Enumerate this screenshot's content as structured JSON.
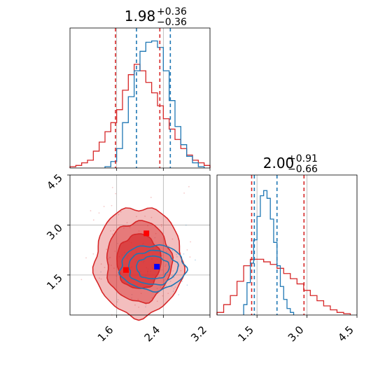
{
  "chart_data": [
    {
      "type": "histogram",
      "panel": "top-left (parameter 1 marginal)",
      "title": {
        "base": "1.98",
        "sup": "+0.36",
        "sub": "−0.36"
      },
      "xlim": [
        0.8,
        3.2
      ],
      "ylim": [
        0,
        1.08
      ],
      "series": [
        {
          "color": "#d62728",
          "bins": [
            0.8,
            0.9,
            1.0,
            1.1,
            1.2,
            1.3,
            1.4,
            1.5,
            1.6,
            1.7,
            1.8,
            1.9,
            2.0,
            2.1,
            2.2,
            2.3,
            2.4,
            2.5,
            2.6,
            2.7,
            2.8,
            2.9,
            3.0,
            3.1,
            3.2
          ],
          "values": [
            0.01,
            0.02,
            0.04,
            0.06,
            0.13,
            0.2,
            0.28,
            0.35,
            0.45,
            0.6,
            0.72,
            0.8,
            0.75,
            0.66,
            0.58,
            0.48,
            0.38,
            0.3,
            0.22,
            0.15,
            0.1,
            0.06,
            0.04,
            0.02
          ],
          "quantiles": [
            1.58,
            2.34
          ]
        },
        {
          "color": "#1f77b4",
          "bins": [
            1.4,
            1.5,
            1.6,
            1.7,
            1.8,
            1.9,
            2.0,
            2.1,
            2.2,
            2.3,
            2.4,
            2.5,
            2.6,
            2.7,
            2.8,
            2.9,
            3.0,
            3.1
          ],
          "values": [
            0.01,
            0.05,
            0.15,
            0.35,
            0.55,
            0.75,
            0.9,
            0.97,
            0.98,
            0.93,
            0.75,
            0.52,
            0.32,
            0.18,
            0.09,
            0.04,
            0.01
          ],
          "quantiles": [
            1.94,
            2.52
          ]
        }
      ],
      "grid": true
    },
    {
      "type": "histogram",
      "panel": "bottom-right (parameter 2 marginal)",
      "title": {
        "base": "2.00",
        "sup": "+0.91",
        "sub": "−0.66"
      },
      "xlim": [
        0.3,
        4.5
      ],
      "xticks": [
        "1.5",
        "3.0",
        "4.5"
      ],
      "ylim": [
        0,
        1.08
      ],
      "series": [
        {
          "color": "#d62728",
          "bins": [
            0.3,
            0.5,
            0.7,
            0.9,
            1.1,
            1.3,
            1.5,
            1.7,
            1.9,
            2.1,
            2.3,
            2.5,
            2.7,
            2.9,
            3.1,
            3.3,
            3.5,
            3.7,
            3.9,
            4.1,
            4.3
          ],
          "values": [
            0.02,
            0.08,
            0.15,
            0.26,
            0.38,
            0.43,
            0.43,
            0.41,
            0.39,
            0.36,
            0.32,
            0.28,
            0.24,
            0.19,
            0.15,
            0.11,
            0.07,
            0.04,
            0.02,
            0.01
          ],
          "quantiles": [
            1.34,
            2.91
          ]
        },
        {
          "color": "#1f77b4",
          "bins": [
            1.1,
            1.2,
            1.3,
            1.4,
            1.5,
            1.6,
            1.7,
            1.8,
            1.9,
            2.0,
            2.1,
            2.2,
            2.3,
            2.4,
            2.5,
            2.6
          ],
          "values": [
            0.08,
            0.25,
            0.4,
            0.58,
            0.76,
            0.92,
            0.96,
            0.9,
            0.74,
            0.56,
            0.38,
            0.22,
            0.12,
            0.05,
            0.02
          ],
          "quantiles": [
            1.42,
            2.1
          ]
        }
      ],
      "grid": true
    },
    {
      "type": "contour",
      "panel": "bottom-left (joint distribution)",
      "xlim": [
        0.8,
        3.2
      ],
      "ylim": [
        0.3,
        4.5
      ],
      "xticks": [
        "1.6",
        "2.4",
        "3.2"
      ],
      "yticks": [
        "1.5",
        "3.0",
        "4.5"
      ],
      "series": [
        {
          "color": "#d62728",
          "filled": true,
          "levels": 3,
          "center": [
            1.98,
            1.9
          ],
          "spread": [
            0.36,
            0.78
          ]
        },
        {
          "color": "#1f77b4",
          "filled": false,
          "levels": 3,
          "center": [
            2.22,
            1.72
          ],
          "spread": [
            0.28,
            0.34
          ]
        }
      ],
      "markers": [
        {
          "color": "#ff0000",
          "x": 1.76,
          "y": 1.65,
          "shape": "square"
        },
        {
          "color": "#ff0000",
          "x": 2.11,
          "y": 2.75,
          "shape": "square"
        },
        {
          "color": "#0000ff",
          "x": 2.29,
          "y": 1.75,
          "shape": "square"
        }
      ],
      "grid": true
    }
  ]
}
